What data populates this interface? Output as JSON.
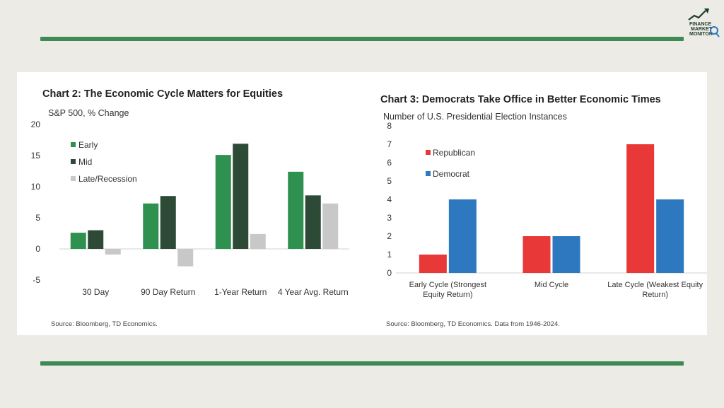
{
  "logo": {
    "text": "FINANCE MARKET MONITOR",
    "line1": "FINANCE",
    "line2": "MARKET",
    "line3": "MONITOR",
    "icon": "trend-arrow-icon"
  },
  "colors": {
    "background": "#ecebe6",
    "accent_rule": "#3e8a55",
    "early": "#2f9150",
    "mid": "#2d4a36",
    "late": "#c8c8c8",
    "republican": "#e93838",
    "democrat": "#2e78c0"
  },
  "chart2": {
    "title": "Chart 2: The Economic Cycle Matters for Equities",
    "subtitle": "S&P 500, % Change",
    "source": "Source: Bloomberg, TD Economics."
  },
  "chart3": {
    "title": "Chart 3: Democrats Take Office in Better Economic Times",
    "subtitle": "Number of U.S. Presidential Election Instances",
    "source": "Source: Bloomberg, TD Economics. Data from 1946-2024."
  },
  "chart_data": [
    {
      "type": "bar",
      "title": "Chart 2: The Economic Cycle Matters for Equities",
      "ylabel": "S&P 500, % Change",
      "categories": [
        "30 Day",
        "90 Day Return",
        "1-Year Return",
        "4 Year Avg. Return"
      ],
      "series": [
        {
          "name": "Early",
          "color": "#2f9150",
          "values": [
            2.6,
            7.3,
            15.1,
            12.4
          ]
        },
        {
          "name": "Mid",
          "color": "#2d4a36",
          "values": [
            3.0,
            8.5,
            16.9,
            8.6
          ]
        },
        {
          "name": "Late/Recession",
          "color": "#c8c8c8",
          "values": [
            -0.9,
            -2.8,
            2.4,
            7.3
          ]
        }
      ],
      "ylim": [
        -5,
        20
      ],
      "yticks": [
        "-5",
        "0",
        "5",
        "10",
        "15",
        "20"
      ],
      "legend": "top-left",
      "grid": false
    },
    {
      "type": "bar",
      "title": "Chart 3: Democrats Take Office in Better Economic Times",
      "ylabel": "Number of U.S. Presidential Election Instances",
      "categories": [
        "Early Cycle (Strongest Equity Return)",
        "Mid Cycle",
        "Late Cycle (Weakest Equity Return)"
      ],
      "category_lines": [
        [
          "Early Cycle (Strongest",
          "Equity Return)"
        ],
        [
          "Mid Cycle"
        ],
        [
          "Late Cycle (Weakest Equity",
          "Return)"
        ]
      ],
      "series": [
        {
          "name": "Republican",
          "color": "#e93838",
          "values": [
            1,
            2,
            7
          ]
        },
        {
          "name": "Democrat",
          "color": "#2e78c0",
          "values": [
            4,
            2,
            4
          ]
        }
      ],
      "ylim": [
        0,
        8
      ],
      "yticks": [
        "0",
        "1",
        "2",
        "3",
        "4",
        "5",
        "6",
        "7",
        "8"
      ],
      "legend": "top-left",
      "grid": false
    }
  ]
}
